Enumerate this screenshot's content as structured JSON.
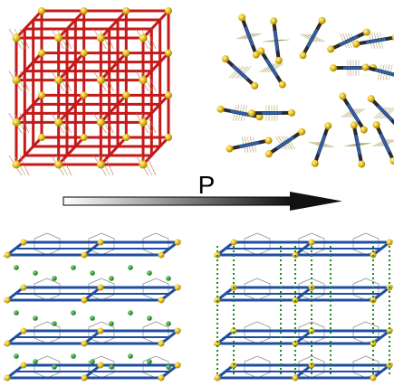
{
  "figure": {
    "arrow_label": "P"
  }
}
